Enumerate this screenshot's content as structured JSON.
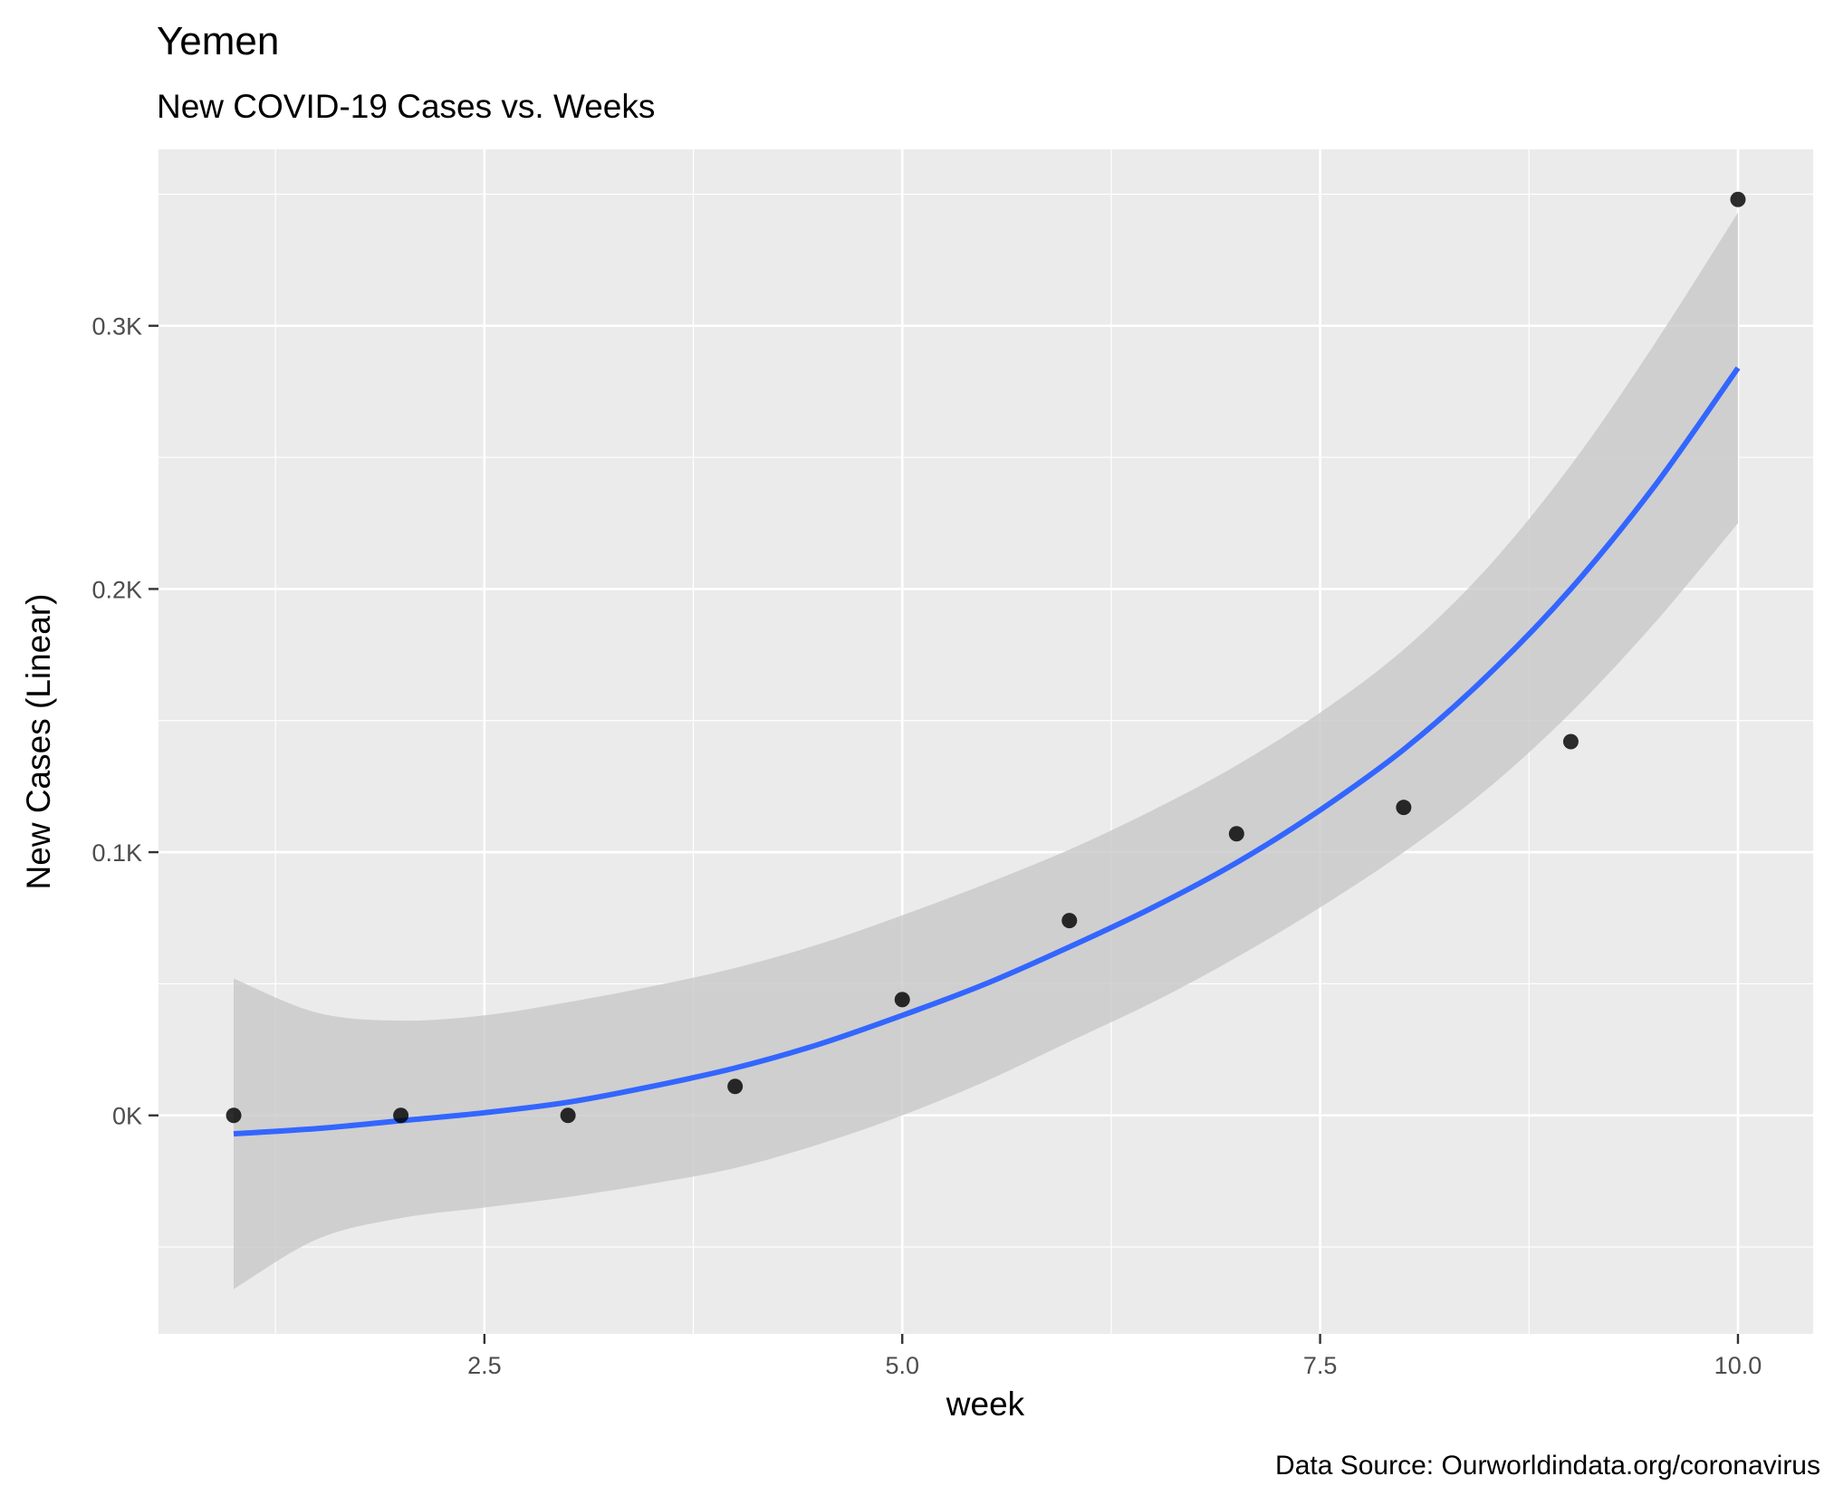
{
  "chart_data": {
    "type": "scatter",
    "title": "Yemen",
    "subtitle": "New COVID-19 Cases vs. Weeks",
    "xlabel": "week",
    "ylabel": "New Cases (Linear)",
    "caption": "Data Source: Ourworldindata.org/coronavirus",
    "xlim": [
      0.55,
      10.45
    ],
    "ylim": [
      -83,
      367
    ],
    "x_ticks": [
      {
        "value": 2.5,
        "label": "2.5"
      },
      {
        "value": 5.0,
        "label": "5.0"
      },
      {
        "value": 7.5,
        "label": "7.5"
      },
      {
        "value": 10.0,
        "label": "10.0"
      }
    ],
    "y_ticks": [
      {
        "value": 0,
        "label": "0K"
      },
      {
        "value": 100,
        "label": "0.1K"
      },
      {
        "value": 200,
        "label": "0.2K"
      },
      {
        "value": 300,
        "label": "0.3K"
      }
    ],
    "grid": true,
    "points": {
      "x": [
        1,
        2,
        3,
        4,
        5,
        6,
        7,
        8,
        9,
        10
      ],
      "y": [
        0,
        0,
        0,
        11,
        44,
        74,
        107,
        117,
        142,
        348
      ]
    },
    "smooth": {
      "x": [
        1,
        1.5,
        2,
        2.5,
        3,
        3.5,
        4,
        4.5,
        5,
        5.5,
        6,
        6.5,
        7,
        7.5,
        8,
        8.5,
        9,
        9.5,
        10
      ],
      "y": [
        -7,
        -5,
        -2,
        1,
        5,
        11,
        18,
        27,
        38,
        50,
        64,
        79,
        96,
        116,
        139,
        167,
        200,
        239,
        284
      ],
      "lower": [
        -66,
        -47,
        -39,
        -35,
        -31,
        -26,
        -20,
        -11,
        0,
        13,
        28,
        43,
        60,
        79,
        100,
        124,
        153,
        187,
        225
      ],
      "upper": [
        52,
        39,
        36,
        38,
        43,
        49,
        56,
        65,
        76,
        88,
        101,
        116,
        133,
        153,
        177,
        208,
        247,
        293,
        343
      ]
    },
    "colors": {
      "panel": "#ebebeb",
      "grid_major": "#ffffff",
      "line": "#3366ff",
      "ribbon": "#c8c8c8",
      "point": "#000000"
    }
  }
}
